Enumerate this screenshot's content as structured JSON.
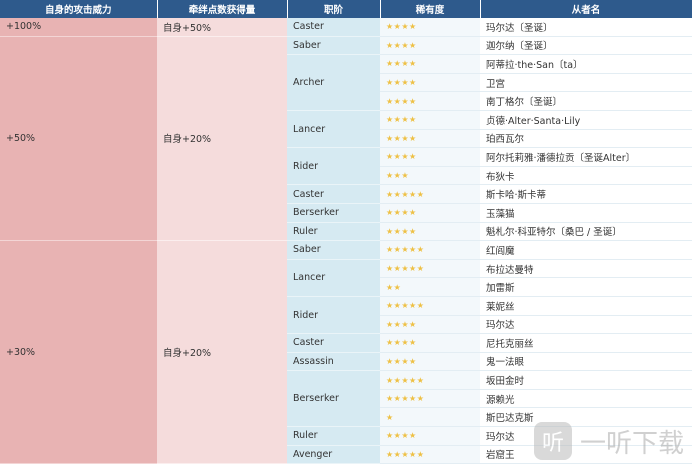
{
  "headers": [
    "自身的攻击威力",
    "牵绊点数获得量",
    "职阶",
    "稀有度",
    "从者名"
  ],
  "colors": {
    "header": "#2e5a8c",
    "attack_col": "#e8b3b3",
    "bond_col": "#f5dcdc",
    "class_col": "#d6eaf2",
    "star": "#eec044"
  },
  "groups": [
    {
      "attack": "+100%",
      "bond": "自身+50%",
      "classes": [
        {
          "class": "Caster",
          "servants": [
            {
              "rarity": 4,
              "name": "玛尔达〔圣诞〕"
            }
          ]
        }
      ]
    },
    {
      "attack": "+50%",
      "bond": "自身+20%",
      "classes": [
        {
          "class": "Saber",
          "servants": [
            {
              "rarity": 4,
              "name": "迦尔纳〔圣诞〕"
            }
          ]
        },
        {
          "class": "Archer",
          "servants": [
            {
              "rarity": 4,
              "name": "阿蒂拉·the·San〔ta〕"
            },
            {
              "rarity": 4,
              "name": "卫宫"
            },
            {
              "rarity": 4,
              "name": "南丁格尔〔圣诞〕"
            }
          ]
        },
        {
          "class": "Lancer",
          "servants": [
            {
              "rarity": 4,
              "name": "贞德·Alter·Santa·Lily"
            },
            {
              "rarity": 4,
              "name": "珀西瓦尔"
            }
          ]
        },
        {
          "class": "Rider",
          "servants": [
            {
              "rarity": 4,
              "name": "阿尔托莉雅·潘德拉贡〔圣诞Alter〕"
            },
            {
              "rarity": 3,
              "name": "布狄卡"
            }
          ]
        },
        {
          "class": "Caster",
          "servants": [
            {
              "rarity": 5,
              "name": "斯卡哈·斯卡蒂"
            }
          ]
        },
        {
          "class": "Berserker",
          "servants": [
            {
              "rarity": 4,
              "name": "玉藻猫"
            }
          ]
        },
        {
          "class": "Ruler",
          "servants": [
            {
              "rarity": 4,
              "name": "魁札尔·科亚特尔〔桑巴 / 圣诞〕"
            }
          ]
        }
      ]
    },
    {
      "attack": "+30%",
      "bond": "自身+20%",
      "classes": [
        {
          "class": "Saber",
          "servants": [
            {
              "rarity": 5,
              "name": "红阎魔"
            }
          ]
        },
        {
          "class": "Lancer",
          "servants": [
            {
              "rarity": 5,
              "name": "布拉达曼特"
            },
            {
              "rarity": 2,
              "name": "加雷斯"
            }
          ]
        },
        {
          "class": "Rider",
          "servants": [
            {
              "rarity": 5,
              "name": "莱妮丝"
            },
            {
              "rarity": 4,
              "name": "玛尔达"
            }
          ]
        },
        {
          "class": "Caster",
          "servants": [
            {
              "rarity": 4,
              "name": "尼托克丽丝"
            }
          ]
        },
        {
          "class": "Assassin",
          "servants": [
            {
              "rarity": 4,
              "name": "鬼一法眼"
            }
          ]
        },
        {
          "class": "Berserker",
          "servants": [
            {
              "rarity": 5,
              "name": "坂田金时"
            },
            {
              "rarity": 5,
              "name": "源赖光"
            },
            {
              "rarity": 1,
              "name": "斯巴达克斯"
            }
          ]
        },
        {
          "class": "Ruler",
          "servants": [
            {
              "rarity": 4,
              "name": "玛尔达"
            }
          ]
        },
        {
          "class": "Avenger",
          "servants": [
            {
              "rarity": 5,
              "name": "岩窟王"
            }
          ]
        }
      ]
    }
  ],
  "watermark": {
    "logo": "听",
    "text": "一听下载"
  }
}
